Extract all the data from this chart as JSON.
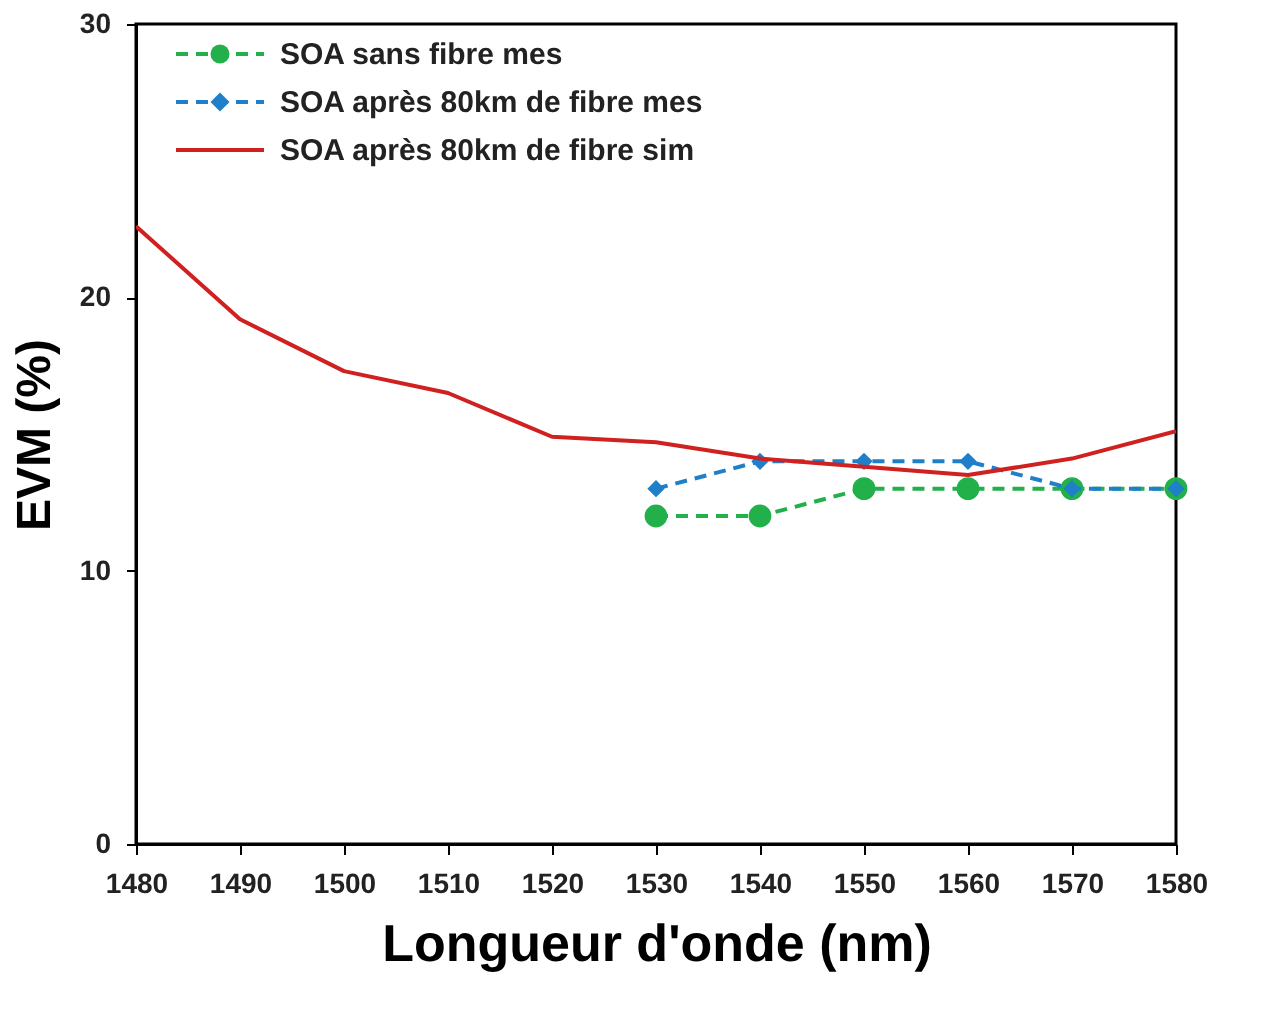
{
  "chart_data": {
    "type": "line",
    "xlabel": "Longueur d'onde (nm)",
    "ylabel": "EVM (%)",
    "xlim": [
      1480,
      1580
    ],
    "xticks": [
      1480,
      1490,
      1500,
      1510,
      1520,
      1530,
      1540,
      1550,
      1560,
      1570,
      1580
    ],
    "ylim": [
      0,
      30
    ],
    "yticks": [
      0,
      10,
      20,
      30
    ],
    "grid": false,
    "legend": "top left",
    "series": [
      {
        "name": "SOA sans fibre mes",
        "color": "#22b04a",
        "marker": "circle",
        "line_style": "dashed",
        "x": [
          1530,
          1540,
          1550,
          1560,
          1570,
          1580
        ],
        "values": [
          12,
          12,
          13,
          13,
          13,
          13
        ]
      },
      {
        "name": "SOA après 80km de fibre mes",
        "color": "#1f7fc8",
        "marker": "diamond",
        "line_style": "dashed",
        "x": [
          1530,
          1540,
          1550,
          1560,
          1570,
          1580
        ],
        "values": [
          13,
          14,
          14,
          14,
          13,
          13
        ]
      },
      {
        "name": "SOA après 80km de fibre sim",
        "color": "#d02020",
        "marker": "none",
        "line_style": "solid",
        "x": [
          1480,
          1490,
          1500,
          1510,
          1520,
          1530,
          1540,
          1550,
          1560,
          1570,
          1580
        ],
        "values": [
          22.6,
          19.2,
          17.3,
          16.5,
          14.9,
          14.7,
          14.1,
          13.8,
          13.5,
          14.1,
          15.1
        ]
      }
    ]
  }
}
